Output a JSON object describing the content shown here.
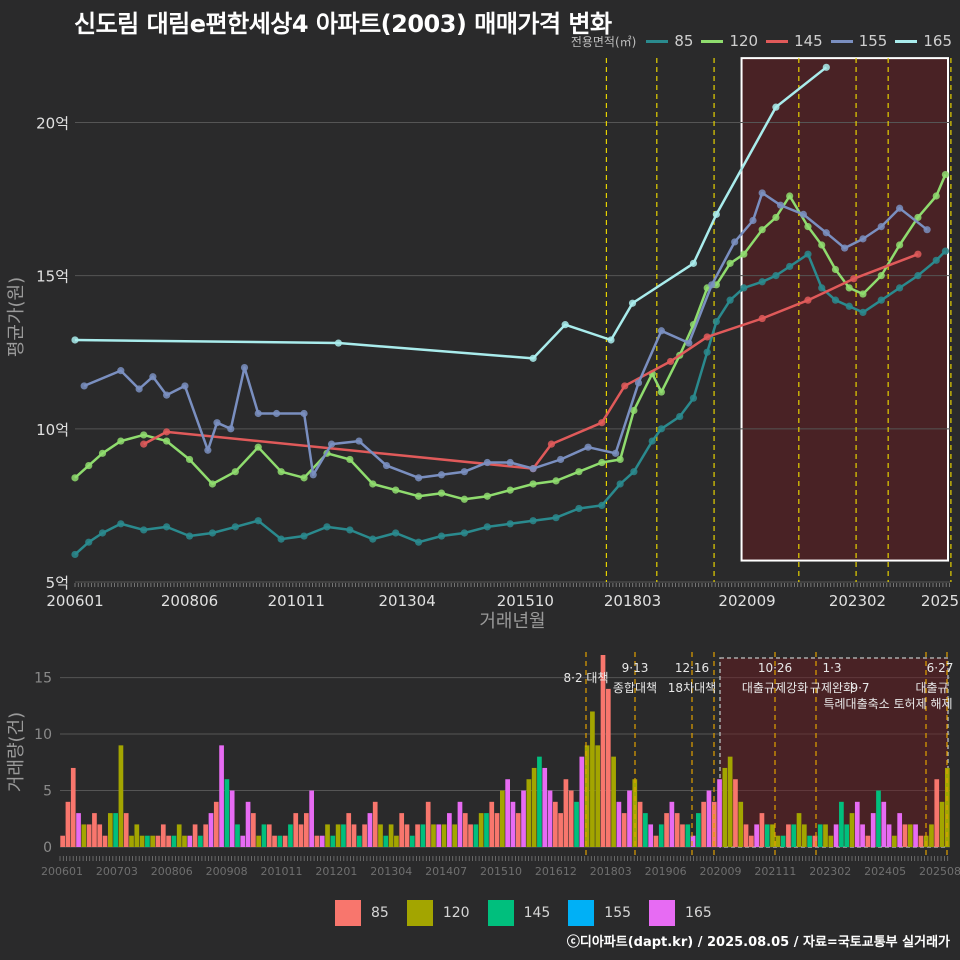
{
  "title": "신도림 대림e편한세상4 아파트(2003) 매매가격 변화",
  "credit": "ⓒ디아파트(dapt.kr) / 2025.08.05 / 자료=국토교통부 실거래가",
  "legend": {
    "title": "전용면적(㎡)",
    "items": [
      {
        "label": "85",
        "line_color": "#2a8a8e",
        "bar_color": "#f8766d"
      },
      {
        "label": "120",
        "line_color": "#8fdc6e",
        "bar_color": "#a3a500"
      },
      {
        "label": "145",
        "line_color": "#e05a5a",
        "bar_color": "#00bf7d"
      },
      {
        "label": "155",
        "line_color": "#7a8fc0",
        "bar_color": "#00b0f6"
      },
      {
        "label": "165",
        "line_color": "#a9ecec",
        "bar_color": "#e76bf3"
      }
    ]
  },
  "chart_data": [
    {
      "type": "line",
      "title": "신도림 대림e편한세상4 아파트(2003) 매매가격 변화",
      "xlabel": "거래년월",
      "ylabel": "평균가(원)",
      "xlim": [
        2006.0,
        2025.1
      ],
      "ylim": [
        5,
        22.3
      ],
      "y_ticks": [
        5,
        10,
        15,
        20
      ],
      "y_tick_labels": [
        "5억",
        "10억",
        "15억",
        "20억"
      ],
      "x_ticks": [
        2006.0,
        2008.5,
        2010.83,
        2013.25,
        2015.83,
        2018.17,
        2020.67,
        2023.08,
        2025.0
      ],
      "x_tick_labels": [
        "200601",
        "200806",
        "201011",
        "201304",
        "201510",
        "201803",
        "202009",
        "202302",
        "2025"
      ],
      "policy_lines": [
        2017.6,
        2018.7,
        2019.95,
        2021.8,
        2023.05,
        2023.75,
        2025.12,
        2025.2
      ],
      "highlight_range": [
        2020.55,
        2025.2
      ],
      "highlight_ylim": [
        5.7,
        22.1
      ],
      "series": [
        {
          "name": "85",
          "x": [
            2006.0,
            2006.3,
            2006.6,
            2007.0,
            2007.5,
            2008.0,
            2008.5,
            2009.0,
            2009.5,
            2010.0,
            2010.5,
            2011.0,
            2011.5,
            2012.0,
            2012.5,
            2013.0,
            2013.5,
            2014.0,
            2014.5,
            2015.0,
            2015.5,
            2016.0,
            2016.5,
            2017.0,
            2017.5,
            2017.9,
            2018.2,
            2018.6,
            2018.8,
            2019.2,
            2019.5,
            2019.8,
            2020.0,
            2020.3,
            2020.6,
            2021.0,
            2021.3,
            2021.6,
            2022.0,
            2022.3,
            2022.6,
            2022.9,
            2023.2,
            2023.6,
            2024.0,
            2024.4,
            2024.8,
            2025.0
          ],
          "values": [
            5.9,
            6.3,
            6.6,
            6.9,
            6.7,
            6.8,
            6.5,
            6.6,
            6.8,
            7.0,
            6.4,
            6.5,
            6.8,
            6.7,
            6.4,
            6.6,
            6.3,
            6.5,
            6.6,
            6.8,
            6.9,
            7.0,
            7.1,
            7.4,
            7.5,
            8.2,
            8.6,
            9.6,
            10.0,
            10.4,
            11.0,
            12.5,
            13.5,
            14.2,
            14.6,
            14.8,
            15.0,
            15.3,
            15.7,
            14.6,
            14.2,
            14.0,
            13.8,
            14.2,
            14.6,
            15.0,
            15.5,
            15.8
          ]
        },
        {
          "name": "120",
          "x": [
            2006.0,
            2006.3,
            2006.6,
            2007.0,
            2007.5,
            2008.0,
            2008.5,
            2009.0,
            2009.5,
            2010.0,
            2010.5,
            2011.0,
            2011.5,
            2012.0,
            2012.5,
            2013.0,
            2013.5,
            2014.0,
            2014.5,
            2015.0,
            2015.5,
            2016.0,
            2016.5,
            2017.0,
            2017.5,
            2017.9,
            2018.2,
            2018.6,
            2018.8,
            2019.2,
            2019.5,
            2019.8,
            2020.0,
            2020.3,
            2020.6,
            2021.0,
            2021.3,
            2021.6,
            2022.0,
            2022.3,
            2022.6,
            2022.9,
            2023.2,
            2023.6,
            2024.0,
            2024.4,
            2024.8,
            2025.0
          ],
          "values": [
            8.4,
            8.8,
            9.2,
            9.6,
            9.8,
            9.6,
            9.0,
            8.2,
            8.6,
            9.4,
            8.6,
            8.4,
            9.2,
            9.0,
            8.2,
            8.0,
            7.8,
            7.9,
            7.7,
            7.8,
            8.0,
            8.2,
            8.3,
            8.6,
            8.9,
            9.0,
            10.6,
            11.8,
            11.2,
            12.4,
            13.4,
            14.6,
            14.7,
            15.4,
            15.7,
            16.5,
            16.9,
            17.6,
            16.6,
            16.0,
            15.2,
            14.6,
            14.4,
            15.0,
            16.0,
            16.9,
            17.6,
            18.3
          ]
        },
        {
          "name": "145",
          "x": [
            2007.5,
            2008.0,
            2016.0,
            2016.4,
            2017.5,
            2018.0,
            2019.0,
            2019.8,
            2021.0,
            2022.0,
            2023.0,
            2024.4
          ],
          "values": [
            9.5,
            9.9,
            8.7,
            9.5,
            10.2,
            11.4,
            12.2,
            13.0,
            13.6,
            14.2,
            14.9,
            15.7
          ]
        },
        {
          "name": "155",
          "x": [
            2006.2,
            2007.0,
            2007.4,
            2007.7,
            2008.0,
            2008.4,
            2008.9,
            2009.1,
            2009.4,
            2009.7,
            2010.0,
            2010.4,
            2011.0,
            2011.2,
            2011.6,
            2012.2,
            2012.8,
            2013.5,
            2014.0,
            2014.5,
            2015.0,
            2015.5,
            2016.0,
            2016.6,
            2017.2,
            2017.8,
            2018.3,
            2018.8,
            2019.4,
            2019.9,
            2020.4,
            2020.8,
            2021.0,
            2021.4,
            2021.9,
            2022.4,
            2022.8,
            2023.2,
            2023.6,
            2024.0,
            2024.6
          ],
          "values": [
            11.4,
            11.9,
            11.3,
            11.7,
            11.1,
            11.4,
            9.3,
            10.2,
            10.0,
            12.0,
            10.5,
            10.5,
            10.5,
            8.5,
            9.5,
            9.6,
            8.8,
            8.4,
            8.5,
            8.6,
            8.9,
            8.9,
            8.7,
            9.0,
            9.4,
            9.2,
            11.5,
            13.2,
            12.8,
            14.7,
            16.1,
            16.8,
            17.7,
            17.3,
            17.0,
            16.4,
            15.9,
            16.2,
            16.6,
            17.2,
            16.5
          ]
        },
        {
          "name": "165",
          "x": [
            2006.0,
            2011.75,
            2016.0,
            2016.7,
            2017.7,
            2018.17,
            2019.5,
            2020.0,
            2021.3,
            2022.4
          ],
          "values": [
            12.9,
            12.8,
            12.3,
            13.4,
            12.9,
            14.1,
            15.4,
            17.0,
            20.5,
            21.8
          ]
        }
      ]
    },
    {
      "type": "bar",
      "title": "",
      "xlabel": "",
      "ylabel": "거래량(건)",
      "ylim": [
        0,
        17
      ],
      "y_ticks": [
        0,
        5,
        10,
        15
      ],
      "x_tick_labels": [
        "200601",
        "200703",
        "200806",
        "200908",
        "201011",
        "201201",
        "201304",
        "201407",
        "201510",
        "201612",
        "201803",
        "201906",
        "202009",
        "202111",
        "202302",
        "202405",
        "202508"
      ],
      "policy_annotations": [
        {
          "date": "8·2",
          "text": "대책"
        },
        {
          "date": "9·13",
          "text": "종합대책"
        },
        {
          "date": "12·16",
          "text": "18차대책"
        },
        {
          "date": "10·26",
          "text": "대출규제강화"
        },
        {
          "date": "1·3",
          "text": "규제완화"
        },
        {
          "date": "9·7",
          "text": "특례대출축소 토허제 해제"
        },
        {
          "date": "6·27",
          "text": "대출규"
        }
      ],
      "total_counts": [
        1,
        4,
        7,
        3,
        2,
        2,
        3,
        2,
        1,
        3,
        3,
        9,
        3,
        1,
        2,
        1,
        1,
        1,
        1,
        2,
        1,
        1,
        2,
        1,
        1,
        2,
        1,
        2,
        3,
        4,
        9,
        6,
        5,
        2,
        1,
        4,
        3,
        1,
        2,
        2,
        1,
        1,
        1,
        2,
        3,
        2,
        3,
        5,
        1,
        1,
        2,
        1,
        2,
        2,
        3,
        2,
        1,
        2,
        3,
        4,
        2,
        1,
        2,
        1,
        3,
        2,
        1,
        2,
        2,
        4,
        2,
        2,
        2,
        3,
        2,
        4,
        3,
        2,
        2,
        3,
        3,
        4,
        3,
        5,
        6,
        4,
        3,
        5,
        6,
        7,
        8,
        7,
        5,
        4,
        3,
        6,
        5,
        4,
        8,
        9,
        12,
        9,
        17,
        14,
        8,
        4,
        3,
        5,
        6,
        4,
        3,
        2,
        1,
        2,
        3,
        4,
        3,
        2,
        2,
        1,
        3,
        4,
        5,
        4,
        6,
        7,
        8,
        6,
        4,
        2,
        1,
        2,
        3,
        2,
        2,
        1,
        1,
        2,
        2,
        3,
        2,
        1,
        1,
        2,
        2,
        1,
        2,
        4,
        2,
        3,
        4,
        2,
        1,
        3,
        5,
        4,
        2,
        1,
        3,
        2,
        2,
        2,
        1,
        1,
        2,
        6,
        4,
        7
      ]
    }
  ]
}
